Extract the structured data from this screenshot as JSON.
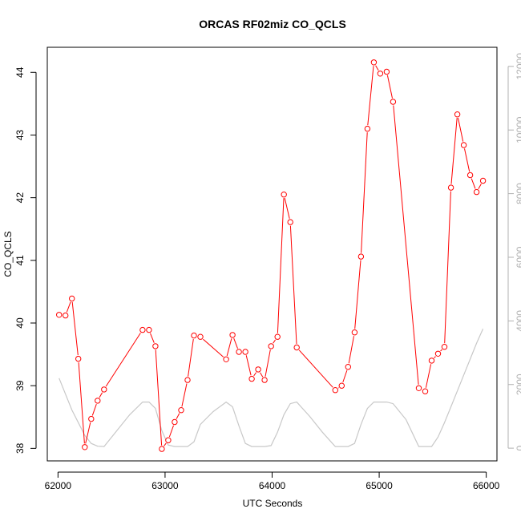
{
  "chart_data": {
    "type": "line",
    "title": "ORCAS RF02miz CO_QCLS",
    "xlabel": "UTC Seconds",
    "ylabel": "CO_QCLS",
    "xlim": [
      61900,
      66100
    ],
    "ylim": [
      37.8,
      44.4
    ],
    "x_ticks": [
      62000,
      63000,
      64000,
      65000,
      66000
    ],
    "y_ticks": [
      38,
      39,
      40,
      41,
      42,
      43,
      44
    ],
    "y2lim": [
      -400,
      12600
    ],
    "y2_ticks": [
      0,
      2000,
      4000,
      6000,
      8000,
      10000,
      12000
    ],
    "series": [
      {
        "role": "primary",
        "style": "line+markers",
        "color": "#ff0000",
        "x": [
          62010,
          62070,
          62130,
          62190,
          62250,
          62310,
          62370,
          62430,
          62790,
          62850,
          62910,
          62970,
          63030,
          63090,
          63150,
          63210,
          63270,
          63330,
          63570,
          63630,
          63690,
          63750,
          63810,
          63870,
          63930,
          63990,
          64050,
          64110,
          64170,
          64230,
          64590,
          64650,
          64710,
          64770,
          64830,
          64890,
          64950,
          65010,
          65070,
          65130,
          65370,
          65430,
          65490,
          65550,
          65610,
          65670,
          65730,
          65790,
          65850,
          65910,
          65970
        ],
        "y": [
          40.13,
          40.12,
          40.39,
          39.43,
          38.02,
          38.47,
          38.76,
          38.94,
          39.89,
          39.89,
          39.63,
          37.99,
          38.13,
          38.42,
          38.61,
          39.09,
          39.8,
          39.78,
          39.42,
          39.81,
          39.54,
          39.54,
          39.11,
          39.26,
          39.09,
          39.63,
          39.78,
          42.05,
          41.61,
          39.61,
          38.93,
          39.0,
          39.3,
          39.85,
          41.06,
          43.1,
          44.16,
          43.98,
          44.01,
          43.53,
          38.96,
          38.91,
          39.4,
          39.51,
          39.62,
          42.16,
          43.33,
          42.84,
          42.36,
          42.09,
          42.27
        ]
      },
      {
        "role": "secondary",
        "style": "line",
        "color": "#c8c8c8",
        "x": [
          62010,
          62130,
          62250,
          62310,
          62370,
          62430,
          62550,
          62670,
          62790,
          62850,
          62910,
          62970,
          63030,
          63090,
          63150,
          63210,
          63270,
          63330,
          63450,
          63570,
          63630,
          63690,
          63750,
          63810,
          63870,
          63930,
          63990,
          64050,
          64110,
          64170,
          64230,
          64350,
          64470,
          64590,
          64650,
          64710,
          64770,
          64830,
          64890,
          64950,
          65010,
          65070,
          65130,
          65250,
          65370,
          65430,
          65490,
          65550,
          65610,
          65670,
          65730,
          65790,
          65850,
          65910,
          65970
        ],
        "y": [
          2200,
          1200,
          400,
          150,
          60,
          50,
          550,
          1050,
          1450,
          1450,
          1250,
          550,
          100,
          50,
          50,
          50,
          200,
          750,
          1150,
          1450,
          1300,
          700,
          150,
          50,
          50,
          50,
          80,
          500,
          1050,
          1400,
          1450,
          1000,
          500,
          50,
          50,
          50,
          150,
          750,
          1250,
          1450,
          1450,
          1450,
          1400,
          900,
          50,
          50,
          50,
          350,
          800,
          1300,
          1800,
          2300,
          2800,
          3300,
          3750
        ]
      }
    ]
  }
}
